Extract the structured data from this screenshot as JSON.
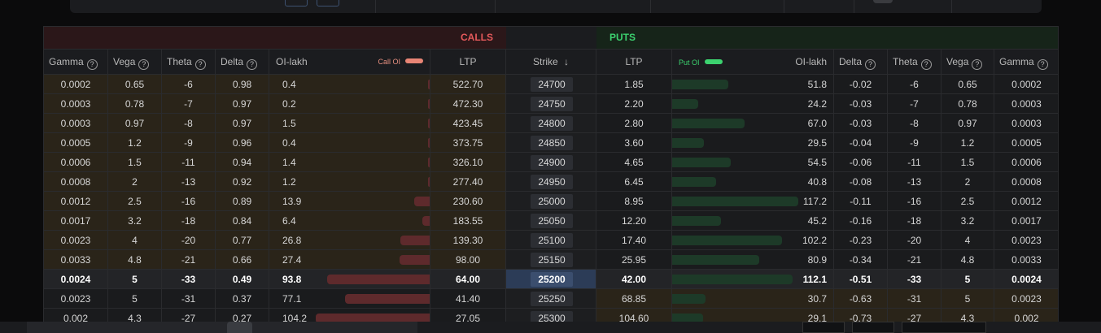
{
  "header": {
    "calls": "CALLS",
    "puts": "PUTS"
  },
  "columns": {
    "gamma": "Gamma",
    "vega": "Vega",
    "theta": "Theta",
    "delta": "Delta",
    "oi_lakh": "OI-lakh",
    "call_oi_legend": "Call OI",
    "ltp": "LTP",
    "strike": "Strike",
    "put_oi_legend": "Put OI"
  },
  "icons": {
    "help": "?",
    "sort_down": "↓"
  },
  "colors": {
    "calls": "#e5595b",
    "puts": "#3cd26f",
    "itm": "#2a2419",
    "atm": "#2c3c57"
  },
  "atm_strike": "25200",
  "rows": [
    {
      "call": {
        "gamma": "0.0002",
        "vega": "0.65",
        "theta": "-6",
        "delta": "0.98",
        "oi": "0.4",
        "ltp": "522.70"
      },
      "strike": "24700",
      "put": {
        "ltp": "1.85",
        "oi": "51.8",
        "delta": "-0.02",
        "theta": "-6",
        "vega": "0.65",
        "gamma": "0.0002"
      }
    },
    {
      "call": {
        "gamma": "0.0003",
        "vega": "0.78",
        "theta": "-7",
        "delta": "0.97",
        "oi": "0.2",
        "ltp": "472.30"
      },
      "strike": "24750",
      "put": {
        "ltp": "2.20",
        "oi": "24.2",
        "delta": "-0.03",
        "theta": "-7",
        "vega": "0.78",
        "gamma": "0.0003"
      }
    },
    {
      "call": {
        "gamma": "0.0003",
        "vega": "0.97",
        "theta": "-8",
        "delta": "0.97",
        "oi": "1.5",
        "ltp": "423.45"
      },
      "strike": "24800",
      "put": {
        "ltp": "2.80",
        "oi": "67.0",
        "delta": "-0.03",
        "theta": "-8",
        "vega": "0.97",
        "gamma": "0.0003"
      }
    },
    {
      "call": {
        "gamma": "0.0005",
        "vega": "1.2",
        "theta": "-9",
        "delta": "0.96",
        "oi": "0.4",
        "ltp": "373.75"
      },
      "strike": "24850",
      "put": {
        "ltp": "3.60",
        "oi": "29.5",
        "delta": "-0.04",
        "theta": "-9",
        "vega": "1.2",
        "gamma": "0.0005"
      }
    },
    {
      "call": {
        "gamma": "0.0006",
        "vega": "1.5",
        "theta": "-11",
        "delta": "0.94",
        "oi": "1.4",
        "ltp": "326.10"
      },
      "strike": "24900",
      "put": {
        "ltp": "4.65",
        "oi": "54.5",
        "delta": "-0.06",
        "theta": "-11",
        "vega": "1.5",
        "gamma": "0.0006"
      }
    },
    {
      "call": {
        "gamma": "0.0008",
        "vega": "2",
        "theta": "-13",
        "delta": "0.92",
        "oi": "1.2",
        "ltp": "277.40"
      },
      "strike": "24950",
      "put": {
        "ltp": "6.45",
        "oi": "40.8",
        "delta": "-0.08",
        "theta": "-13",
        "vega": "2",
        "gamma": "0.0008"
      }
    },
    {
      "call": {
        "gamma": "0.0012",
        "vega": "2.5",
        "theta": "-16",
        "delta": "0.89",
        "oi": "13.9",
        "ltp": "230.60"
      },
      "strike": "25000",
      "put": {
        "ltp": "8.95",
        "oi": "117.2",
        "delta": "-0.11",
        "theta": "-16",
        "vega": "2.5",
        "gamma": "0.0012"
      }
    },
    {
      "call": {
        "gamma": "0.0017",
        "vega": "3.2",
        "theta": "-18",
        "delta": "0.84",
        "oi": "6.4",
        "ltp": "183.55"
      },
      "strike": "25050",
      "put": {
        "ltp": "12.20",
        "oi": "45.2",
        "delta": "-0.16",
        "theta": "-18",
        "vega": "3.2",
        "gamma": "0.0017"
      }
    },
    {
      "call": {
        "gamma": "0.0023",
        "vega": "4",
        "theta": "-20",
        "delta": "0.77",
        "oi": "26.8",
        "ltp": "139.30"
      },
      "strike": "25100",
      "put": {
        "ltp": "17.40",
        "oi": "102.2",
        "delta": "-0.23",
        "theta": "-20",
        "vega": "4",
        "gamma": "0.0023"
      }
    },
    {
      "call": {
        "gamma": "0.0033",
        "vega": "4.8",
        "theta": "-21",
        "delta": "0.66",
        "oi": "27.4",
        "ltp": "98.00"
      },
      "strike": "25150",
      "put": {
        "ltp": "25.95",
        "oi": "80.9",
        "delta": "-0.34",
        "theta": "-21",
        "vega": "4.8",
        "gamma": "0.0033"
      }
    },
    {
      "call": {
        "gamma": "0.0024",
        "vega": "5",
        "theta": "-33",
        "delta": "0.49",
        "oi": "93.8",
        "ltp": "64.00"
      },
      "strike": "25200",
      "put": {
        "ltp": "42.00",
        "oi": "112.1",
        "delta": "-0.51",
        "theta": "-33",
        "vega": "5",
        "gamma": "0.0024"
      }
    },
    {
      "call": {
        "gamma": "0.0023",
        "vega": "5",
        "theta": "-31",
        "delta": "0.37",
        "oi": "77.1",
        "ltp": "41.40"
      },
      "strike": "25250",
      "put": {
        "ltp": "68.85",
        "oi": "30.7",
        "delta": "-0.63",
        "theta": "-31",
        "vega": "5",
        "gamma": "0.0023"
      }
    },
    {
      "call": {
        "gamma": "0.002",
        "vega": "4.3",
        "theta": "-27",
        "delta": "0.27",
        "oi": "104.2",
        "ltp": "27.05"
      },
      "strike": "25300",
      "put": {
        "ltp": "104.60",
        "oi": "29.1",
        "delta": "-0.73",
        "theta": "-27",
        "vega": "4.3",
        "gamma": "0.002"
      }
    }
  ]
}
